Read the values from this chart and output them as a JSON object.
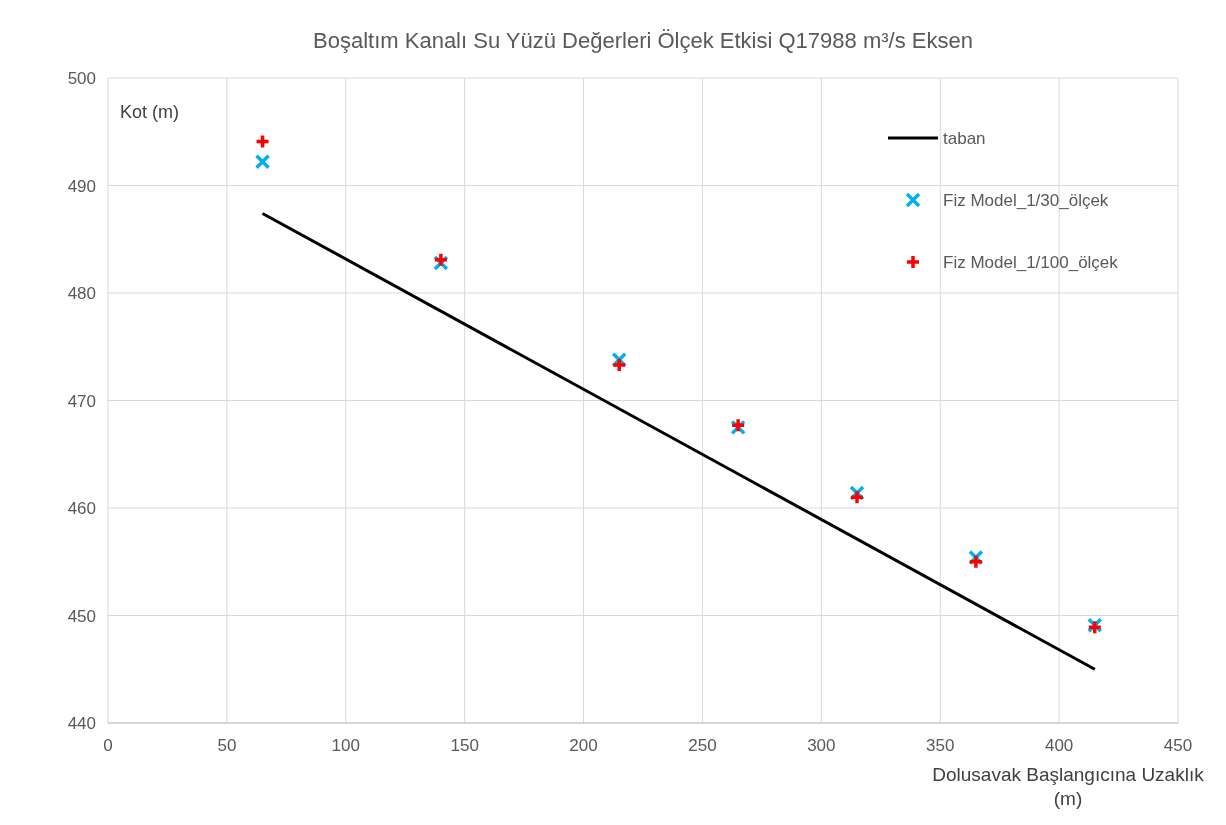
{
  "chart_data": {
    "type": "scatter",
    "title": "Boşaltım Kanalı Su Yüzü Değerleri Ölçek Etkisi Q17988 m³/s Eksen",
    "xlabel": "Dolusavak Başlangıcına Uzaklık (m)",
    "ylabel": "Kot (m)",
    "xlim": [
      0,
      450
    ],
    "xticks": [
      0,
      50,
      100,
      150,
      200,
      250,
      300,
      350,
      400,
      450
    ],
    "ylim": [
      440,
      500
    ],
    "yticks": [
      440,
      450,
      460,
      470,
      480,
      490,
      500
    ],
    "grid": true,
    "legend": "top right",
    "series": [
      {
        "name": "taban",
        "type": "line",
        "color": "#000000",
        "x": [
          65,
          415
        ],
        "values": [
          487.4,
          445.0
        ],
        "marker": "none",
        "line_style": "solid"
      },
      {
        "name": "Fiz Model_1/30_ölçek",
        "color": "#00b0f0",
        "x": [
          65,
          140,
          215,
          265,
          315,
          365,
          415
        ],
        "values": [
          492.2,
          482.8,
          473.8,
          467.5,
          461.4,
          455.4,
          449.1
        ],
        "marker": "x"
      },
      {
        "name": "Fiz Model_1/100_ölçek",
        "color": "#ff0000",
        "x": [
          65,
          140,
          215,
          265,
          315,
          365,
          415
        ],
        "values": [
          494.1,
          483.1,
          473.3,
          467.7,
          461.0,
          455.0,
          448.9
        ],
        "marker": "cross"
      }
    ]
  }
}
